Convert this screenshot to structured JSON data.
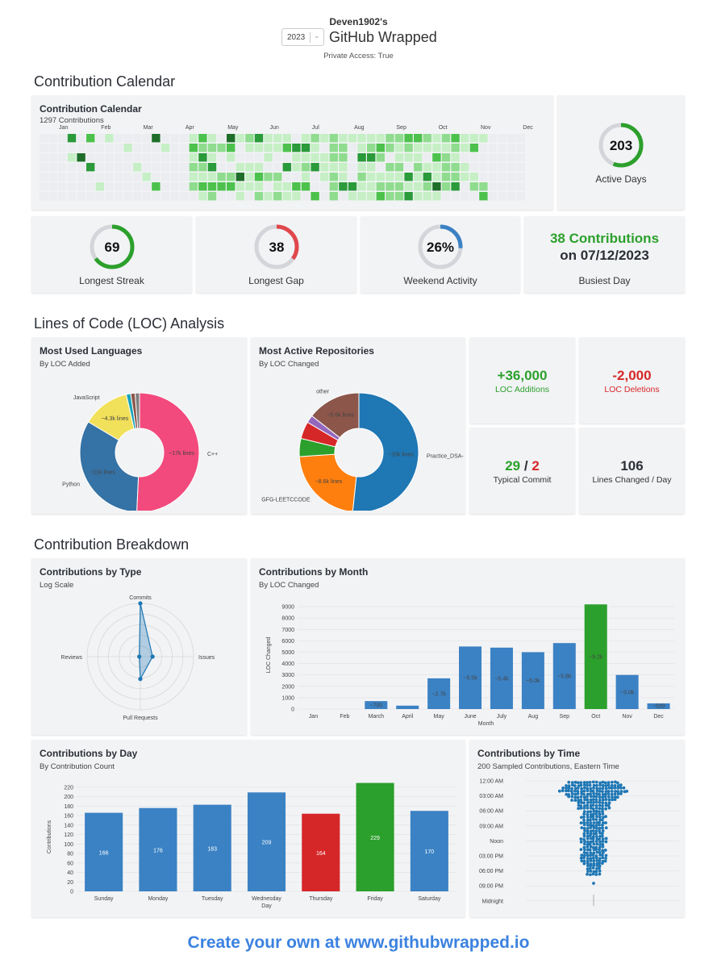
{
  "header": {
    "username": "Deven1902's",
    "title": "GitHub Wrapped",
    "year": "2023",
    "private_access": "Private Access: True"
  },
  "sections": {
    "calendar": "Contribution Calendar",
    "loc": "Lines of Code (LOC) Analysis",
    "breakdown": "Contribution Breakdown"
  },
  "calendar": {
    "title": "Contribution Calendar",
    "subtitle": "1297 Contributions",
    "months": [
      "Jan",
      "Feb",
      "Mar",
      "Apr",
      "May",
      "Jun",
      "Jul",
      "Aug",
      "Sep",
      "Oct",
      "Nov",
      "Dec"
    ],
    "colors": [
      "#ebedf0",
      "#c6efc6",
      "#8fdc8f",
      "#4cc24c",
      "#2a9a3a",
      "#1e6e2a"
    ]
  },
  "stats": {
    "active_days": {
      "value": "203",
      "label": "Active Days",
      "fraction": 0.56,
      "color": "#2ca02c"
    },
    "longest_streak": {
      "value": "69",
      "label": "Longest Streak",
      "fraction": 0.65,
      "color": "#2ca02c"
    },
    "longest_gap": {
      "value": "38",
      "label": "Longest Gap",
      "fraction": 0.35,
      "color": "#e0474c"
    },
    "weekend_activity": {
      "value": "26%",
      "label": "Weekend Activity",
      "fraction": 0.26,
      "color": "#3b82c4"
    },
    "busiest_day": {
      "line1": "38 Contributions",
      "line2": "on 07/12/2023",
      "label": "Busiest Day"
    }
  },
  "languages": {
    "title": "Most Used Languages",
    "subtitle": "By LOC Added",
    "slices": [
      {
        "name": "C++",
        "label": "~17k lines",
        "value": 17,
        "color": "#f24a7d"
      },
      {
        "name": "Python",
        "label": "~11k lines",
        "value": 11,
        "color": "#3572a5"
      },
      {
        "name": "JavaScript",
        "label": "~4.3k lines",
        "value": 4.3,
        "color": "#f1e05a"
      },
      {
        "name": "",
        "label": "",
        "value": 0.4,
        "color": "#17a2b8"
      },
      {
        "name": "",
        "label": "",
        "value": 0.4,
        "color": "#8c564b"
      },
      {
        "name": "",
        "label": "",
        "value": 0.4,
        "color": "#7f7f7f"
      }
    ]
  },
  "repos": {
    "title": "Most Active Repositories",
    "subtitle": "By LOC Changed",
    "slices": [
      {
        "name": "Practice_DSA-",
        "label": "~20k lines",
        "value": 20,
        "color": "#1f77b4"
      },
      {
        "name": "GFG-LEETCCODE",
        "label": "~8.6k lines",
        "value": 8.6,
        "color": "#ff7f0e"
      },
      {
        "name": "",
        "label": "",
        "value": 1.9,
        "color": "#2ca02c"
      },
      {
        "name": "",
        "label": "",
        "value": 1.8,
        "color": "#d62728"
      },
      {
        "name": "",
        "label": "",
        "value": 0.8,
        "color": "#9467bd"
      },
      {
        "name": "other",
        "label": "~5.6k lines",
        "value": 5.6,
        "color": "#8c564b"
      }
    ]
  },
  "loc_stats": {
    "additions": {
      "value": "+36,000",
      "label": "LOC Additions"
    },
    "deletions": {
      "value": "-2,000",
      "label": "LOC Deletions"
    },
    "typical_commit": {
      "add": "29",
      "slash": "/",
      "del": "2",
      "label": "Typical Commit"
    },
    "lines_per_day": {
      "value": "106",
      "label": "Lines Changed / Day"
    }
  },
  "by_type": {
    "title": "Contributions by Type",
    "subtitle": "Log Scale",
    "axes": [
      "Commits",
      "Issues",
      "Pull Requests",
      "Reviews"
    ],
    "values": [
      1.0,
      0.23,
      0.42,
      0.02
    ]
  },
  "by_month": {
    "title": "Contributions by Month",
    "subtitle": "By LOC Changed",
    "chart_data": {
      "type": "bar",
      "categories": [
        "Jan",
        "Feb",
        "March",
        "April",
        "May",
        "June",
        "July",
        "Aug",
        "Sep",
        "Oct",
        "Nov",
        "Dec"
      ],
      "values": [
        0,
        0,
        700,
        300,
        2700,
        5500,
        5400,
        5000,
        5800,
        9200,
        3000,
        500
      ],
      "labels": [
        "",
        "",
        "~700",
        "",
        "~2.7k",
        "~5.5k",
        "~5.4k",
        "~5.0k",
        "~5.8k",
        "~9.2k",
        "~3.0k",
        "~500"
      ],
      "highlight_index": 9,
      "xlabel": "Month",
      "ylabel": "LOC Changed",
      "yticks": [
        0,
        1000,
        2000,
        3000,
        4000,
        5000,
        6000,
        7000,
        8000,
        9000
      ],
      "ylim": [
        0,
        9500
      ]
    }
  },
  "by_day": {
    "title": "Contributions by Day",
    "subtitle": "By Contribution Count",
    "chart_data": {
      "type": "bar",
      "categories": [
        "Sunday",
        "Monday",
        "Tuesday",
        "Wednesday",
        "Thursday",
        "Friday",
        "Saturday"
      ],
      "values": [
        166,
        176,
        183,
        209,
        164,
        229,
        170
      ],
      "max_index": 5,
      "min_index": 4,
      "xlabel": "Day",
      "ylabel": "Contributions",
      "yticks": [
        0,
        20,
        40,
        60,
        80,
        100,
        120,
        140,
        160,
        180,
        200,
        220
      ],
      "ylim": [
        0,
        230
      ]
    }
  },
  "by_time": {
    "title": "Contributions by Time",
    "subtitle": "200 Sampled Contributions, Eastern Time",
    "ticks": [
      "12:00 AM",
      "03:00 AM",
      "06:00 AM",
      "09:00 AM",
      "Noon",
      "03:00 PM",
      "06:00 PM",
      "09:00 PM",
      "Midnight"
    ]
  },
  "footer": "Create your own at www.githubwrapped.io"
}
